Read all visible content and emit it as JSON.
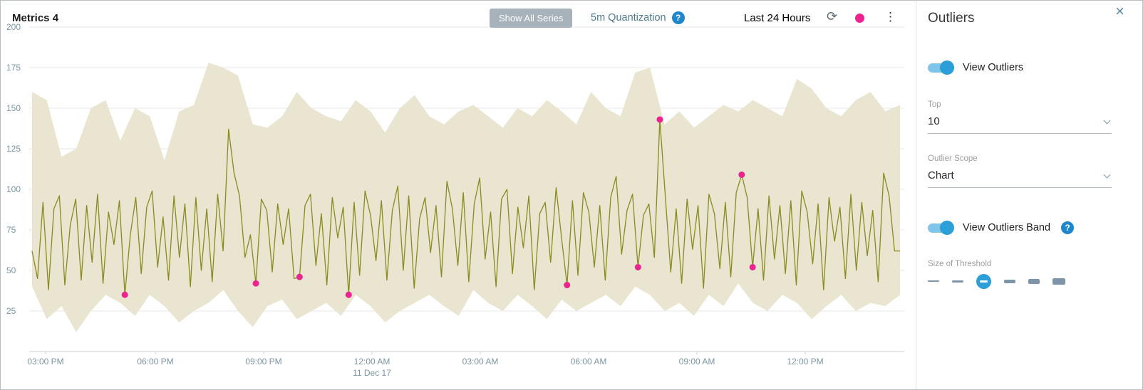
{
  "header": {
    "title": "Metrics 4",
    "show_all_series": "Show All Series",
    "quantization": "5m Quantization",
    "time_range": "Last 24 Hours"
  },
  "icons": {
    "help": "?",
    "refresh": "⟳",
    "kebab": "⋮",
    "close": "×"
  },
  "outliers_panel": {
    "title": "Outliers",
    "view_outliers_label": "View Outliers",
    "top_label": "Top",
    "top_value": "10",
    "scope_label": "Outlier Scope",
    "scope_value": "Chart",
    "view_band_label": "View Outliers Band",
    "threshold_label": "Size of Threshold"
  },
  "colors": {
    "accent_blue": "#2d9fd8",
    "line": "#8a8a21",
    "band": "#e9e5d0",
    "outlier_pink": "#ed2490",
    "axis_label": "#7b96a4",
    "grid": "#e7e7e7",
    "baseline": "#cfcfcf"
  },
  "chart_data": {
    "type": "line",
    "title": "Metrics 4",
    "ylim": [
      0,
      200
    ],
    "y_ticks": [
      200,
      175,
      150,
      125,
      100,
      75,
      50,
      25
    ],
    "x_ticks": [
      "03:00 PM",
      "06:00 PM",
      "09:00 PM",
      "12:00 AM",
      "03:00 AM",
      "06:00 AM",
      "09:00 AM",
      "12:00 PM"
    ],
    "x_date_label": "11 Dec 17",
    "x_date_tick_index": 3,
    "series": [
      {
        "name": "metric-series",
        "values": [
          62,
          45,
          92,
          38,
          88,
          96,
          41,
          78,
          94,
          44,
          90,
          55,
          97,
          42,
          86,
          66,
          93,
          35,
          72,
          95,
          48,
          89,
          99,
          52,
          83,
          44,
          96,
          58,
          91,
          40,
          95,
          50,
          88,
          43,
          97,
          62,
          137,
          110,
          96,
          58,
          72,
          42,
          94,
          87,
          49,
          91,
          66,
          88,
          45,
          46,
          90,
          97,
          53,
          85,
          41,
          95,
          70,
          89,
          35,
          92,
          47,
          99,
          84,
          56,
          93,
          44,
          87,
          102,
          50,
          96,
          39,
          82,
          95,
          61,
          90,
          46,
          105,
          88,
          53,
          98,
          43,
          91,
          107,
          57,
          86,
          40,
          94,
          100,
          48,
          89,
          64,
          96,
          38,
          85,
          92,
          55,
          101,
          70,
          41,
          93,
          47,
          98,
          86,
          52,
          90,
          44,
          95,
          108,
          60,
          87,
          97,
          52,
          84,
          91,
          58,
          143,
          96,
          49,
          88,
          42,
          94,
          63,
          90,
          39,
          97,
          85,
          51,
          92,
          46,
          98,
          109,
          95,
          52,
          88,
          44,
          96,
          57,
          90,
          48,
          93,
          41,
          99,
          86,
          54,
          91,
          38,
          95,
          68,
          89,
          45,
          97,
          50,
          92,
          59,
          87,
          43,
          110,
          96,
          62,
          62
        ]
      }
    ],
    "band": {
      "name": "outliers-band",
      "upper": [
        160,
        155,
        120,
        125,
        150,
        155,
        130,
        150,
        145,
        118,
        148,
        152,
        178,
        175,
        170,
        140,
        138,
        145,
        160,
        150,
        145,
        142,
        155,
        148,
        135,
        150,
        158,
        145,
        140,
        148,
        152,
        145,
        138,
        150,
        145,
        155,
        148,
        140,
        160,
        150,
        145,
        172,
        175,
        140,
        148,
        138,
        145,
        152,
        148,
        155,
        150,
        145,
        168,
        162,
        150,
        145,
        155,
        160,
        148,
        152
      ],
      "lower": [
        40,
        20,
        28,
        12,
        25,
        35,
        30,
        22,
        35,
        28,
        18,
        25,
        30,
        38,
        25,
        15,
        28,
        32,
        20,
        25,
        30,
        22,
        35,
        28,
        18,
        25,
        30,
        35,
        28,
        22,
        38,
        30,
        25,
        35,
        28,
        20,
        32,
        25,
        30,
        35,
        28,
        40,
        35,
        25,
        30,
        22,
        35,
        28,
        42,
        30,
        25,
        35,
        30,
        20,
        28,
        35,
        25,
        30,
        28,
        35
      ]
    },
    "outliers": [
      {
        "index": 17,
        "value": 35
      },
      {
        "index": 41,
        "value": 42
      },
      {
        "index": 49,
        "value": 46
      },
      {
        "index": 58,
        "value": 35
      },
      {
        "index": 98,
        "value": 41
      },
      {
        "index": 111,
        "value": 52
      },
      {
        "index": 115,
        "value": 143
      },
      {
        "index": 130,
        "value": 109
      },
      {
        "index": 132,
        "value": 52
      }
    ]
  }
}
